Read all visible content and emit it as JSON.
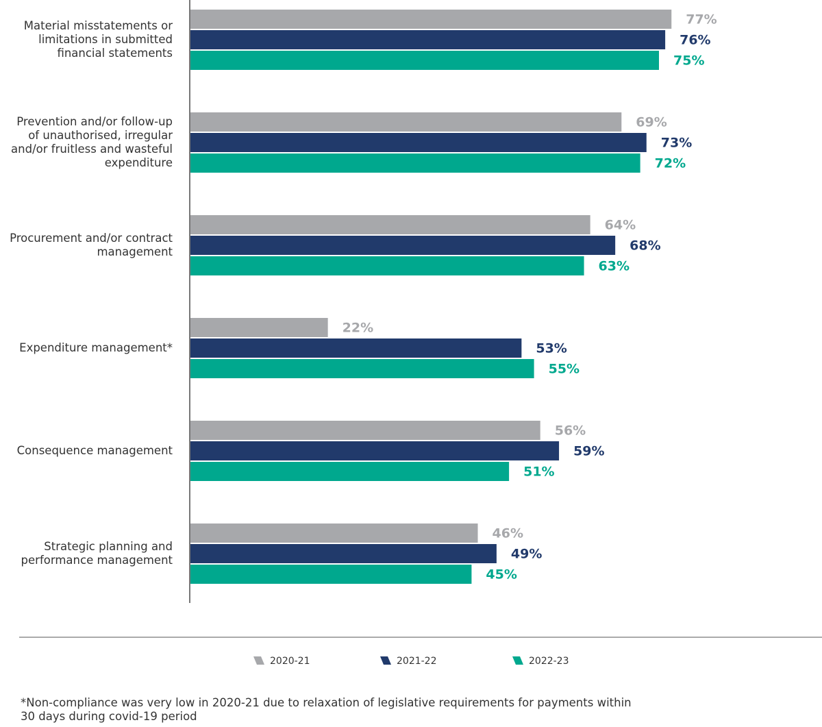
{
  "chart_data": {
    "type": "bar",
    "orientation": "horizontal",
    "categories": [
      "Material misstatements or limitations in submitted financial statements",
      "Prevention and/or follow-up of unauthorised, irregular and/or fruitless and wasteful expenditure",
      "Procurement and/or contract management",
      "Expenditure management*",
      "Consequence management",
      "Strategic planning and performance management"
    ],
    "series": [
      {
        "name": "2020-21",
        "color": "#a7a8ab",
        "values": [
          77,
          69,
          64,
          22,
          56,
          46
        ],
        "value_labels": [
          "77%",
          "69%",
          "64%",
          "22%",
          "56%",
          "46%"
        ]
      },
      {
        "name": "2021-22",
        "color": "#213a6b",
        "values": [
          76,
          73,
          68,
          53,
          59,
          49
        ],
        "value_labels": [
          "76%",
          "73%",
          "68%",
          "53%",
          "59%",
          "49%"
        ]
      },
      {
        "name": "2022-23",
        "color": "#00a88e",
        "values": [
          75,
          72,
          63,
          55,
          51,
          45
        ],
        "value_labels": [
          "75%",
          "72%",
          "63%",
          "55%",
          "51%",
          "45%"
        ]
      }
    ],
    "legend": "bottom",
    "footnote": "*Non-compliance was very low in 2020-21 due to relaxation of legislative requirements for payments within 30 days during covid-19 period"
  }
}
